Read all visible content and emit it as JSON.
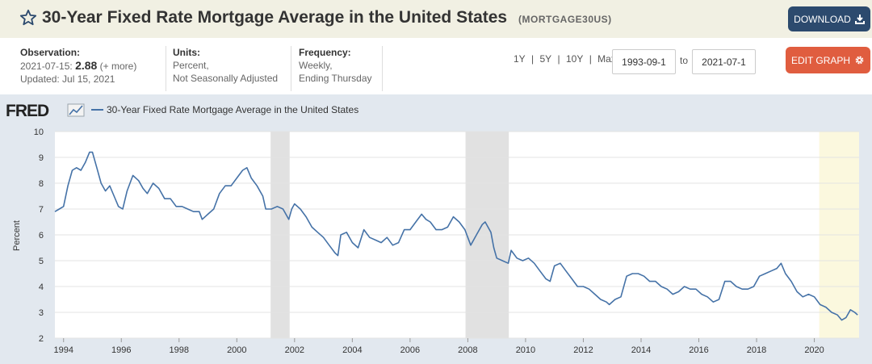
{
  "header": {
    "title": "30-Year Fixed Rate Mortgage Average in the United States",
    "series_id": "(MORTGAGE30US)",
    "download_label": "DOWNLOAD"
  },
  "meta": {
    "observation_label": "Observation:",
    "observation_date": "2021-07-15:",
    "observation_value": "2.88",
    "observation_more": "(+ more)",
    "updated": "Updated: Jul 15, 2021",
    "units_label": "Units:",
    "units_line1": "Percent,",
    "units_line2": "Not Seasonally Adjusted",
    "frequency_label": "Frequency:",
    "frequency_line1": "Weekly,",
    "frequency_line2": "Ending Thursday"
  },
  "controls": {
    "range_1y": "1Y",
    "range_5y": "5Y",
    "range_10y": "10Y",
    "range_max": "Max",
    "sep": "|",
    "start_date": "1993-09-1",
    "to_label": "to",
    "end_date": "2021-07-1",
    "edit_label": "EDIT GRAPH"
  },
  "logo": {
    "text": "FRED"
  },
  "colors": {
    "line": "#4572a7",
    "recession": "#e1e1e1",
    "highlight": "#fbf8de",
    "download_btn": "#2c4a6e",
    "edit_btn": "#e05d3f"
  },
  "chart_data": {
    "type": "line",
    "ylabel": "Percent",
    "ylim": [
      2,
      10
    ],
    "yticks": [
      2,
      3,
      4,
      5,
      6,
      7,
      8,
      9,
      10
    ],
    "xlim": [
      1993.7,
      2021.55
    ],
    "xticks": [
      1994,
      1996,
      1998,
      2000,
      2002,
      2004,
      2006,
      2008,
      2010,
      2012,
      2014,
      2016,
      2018,
      2020
    ],
    "grid": "horizontal",
    "legend_position": "top-left",
    "recessions": [
      [
        2001.17,
        2001.83
      ],
      [
        2007.92,
        2009.42
      ]
    ],
    "highlight_range": [
      2020.17,
      2021.55
    ],
    "series": [
      {
        "name": "30-Year Fixed Rate Mortgage Average in the United States",
        "x": [
          1993.7,
          1993.85,
          1994.0,
          1994.15,
          1994.3,
          1994.45,
          1994.6,
          1994.75,
          1994.9,
          1995.0,
          1995.15,
          1995.3,
          1995.45,
          1995.6,
          1995.75,
          1995.9,
          1996.05,
          1996.2,
          1996.4,
          1996.6,
          1996.75,
          1996.9,
          1997.1,
          1997.3,
          1997.5,
          1997.7,
          1997.9,
          1998.1,
          1998.3,
          1998.5,
          1998.7,
          1998.8,
          1999.0,
          1999.2,
          1999.4,
          1999.6,
          1999.8,
          2000.0,
          2000.2,
          2000.35,
          2000.5,
          2000.7,
          2000.9,
          2001.0,
          2001.2,
          2001.4,
          2001.6,
          2001.8,
          2001.9,
          2002.0,
          2002.2,
          2002.4,
          2002.6,
          2002.8,
          2003.0,
          2003.2,
          2003.4,
          2003.5,
          2003.6,
          2003.8,
          2004.0,
          2004.2,
          2004.4,
          2004.6,
          2004.8,
          2005.0,
          2005.2,
          2005.4,
          2005.6,
          2005.8,
          2006.0,
          2006.2,
          2006.4,
          2006.55,
          2006.7,
          2006.9,
          2007.1,
          2007.3,
          2007.5,
          2007.7,
          2007.9,
          2008.0,
          2008.1,
          2008.3,
          2008.5,
          2008.6,
          2008.8,
          2008.9,
          2009.0,
          2009.2,
          2009.4,
          2009.5,
          2009.7,
          2009.9,
          2010.1,
          2010.3,
          2010.5,
          2010.7,
          2010.85,
          2011.0,
          2011.2,
          2011.4,
          2011.6,
          2011.8,
          2012.0,
          2012.2,
          2012.4,
          2012.6,
          2012.8,
          2012.9,
          2013.1,
          2013.3,
          2013.5,
          2013.7,
          2013.9,
          2014.1,
          2014.3,
          2014.5,
          2014.7,
          2014.9,
          2015.1,
          2015.3,
          2015.5,
          2015.7,
          2015.9,
          2016.1,
          2016.3,
          2016.5,
          2016.7,
          2016.9,
          2017.1,
          2017.3,
          2017.5,
          2017.7,
          2017.9,
          2018.1,
          2018.3,
          2018.5,
          2018.7,
          2018.85,
          2019.0,
          2019.2,
          2019.4,
          2019.6,
          2019.8,
          2020.0,
          2020.2,
          2020.4,
          2020.6,
          2020.8,
          2020.95,
          2021.1,
          2021.25,
          2021.4,
          2021.5
        ],
        "values": [
          6.9,
          7.0,
          7.1,
          7.9,
          8.5,
          8.6,
          8.5,
          8.8,
          9.2,
          9.2,
          8.6,
          8.0,
          7.7,
          7.9,
          7.5,
          7.1,
          7.0,
          7.7,
          8.3,
          8.1,
          7.8,
          7.6,
          8.0,
          7.8,
          7.4,
          7.4,
          7.1,
          7.1,
          7.0,
          6.9,
          6.9,
          6.6,
          6.8,
          7.0,
          7.6,
          7.9,
          7.9,
          8.2,
          8.5,
          8.6,
          8.2,
          7.9,
          7.5,
          7.0,
          7.0,
          7.1,
          7.0,
          6.6,
          7.0,
          7.2,
          7.0,
          6.7,
          6.3,
          6.1,
          5.9,
          5.6,
          5.3,
          5.2,
          6.0,
          6.1,
          5.7,
          5.5,
          6.2,
          5.9,
          5.8,
          5.7,
          5.9,
          5.6,
          5.7,
          6.2,
          6.2,
          6.5,
          6.8,
          6.6,
          6.5,
          6.2,
          6.2,
          6.3,
          6.7,
          6.5,
          6.2,
          5.9,
          5.6,
          6.0,
          6.4,
          6.5,
          6.1,
          5.5,
          5.1,
          5.0,
          4.9,
          5.4,
          5.1,
          5.0,
          5.1,
          4.9,
          4.6,
          4.3,
          4.2,
          4.8,
          4.9,
          4.6,
          4.3,
          4.0,
          4.0,
          3.9,
          3.7,
          3.5,
          3.4,
          3.3,
          3.5,
          3.6,
          4.4,
          4.5,
          4.5,
          4.4,
          4.2,
          4.2,
          4.0,
          3.9,
          3.7,
          3.8,
          4.0,
          3.9,
          3.9,
          3.7,
          3.6,
          3.4,
          3.5,
          4.2,
          4.2,
          4.0,
          3.9,
          3.9,
          4.0,
          4.4,
          4.5,
          4.6,
          4.7,
          4.9,
          4.5,
          4.2,
          3.8,
          3.6,
          3.7,
          3.6,
          3.3,
          3.2,
          3.0,
          2.9,
          2.7,
          2.8,
          3.1,
          3.0,
          2.9
        ]
      }
    ]
  }
}
